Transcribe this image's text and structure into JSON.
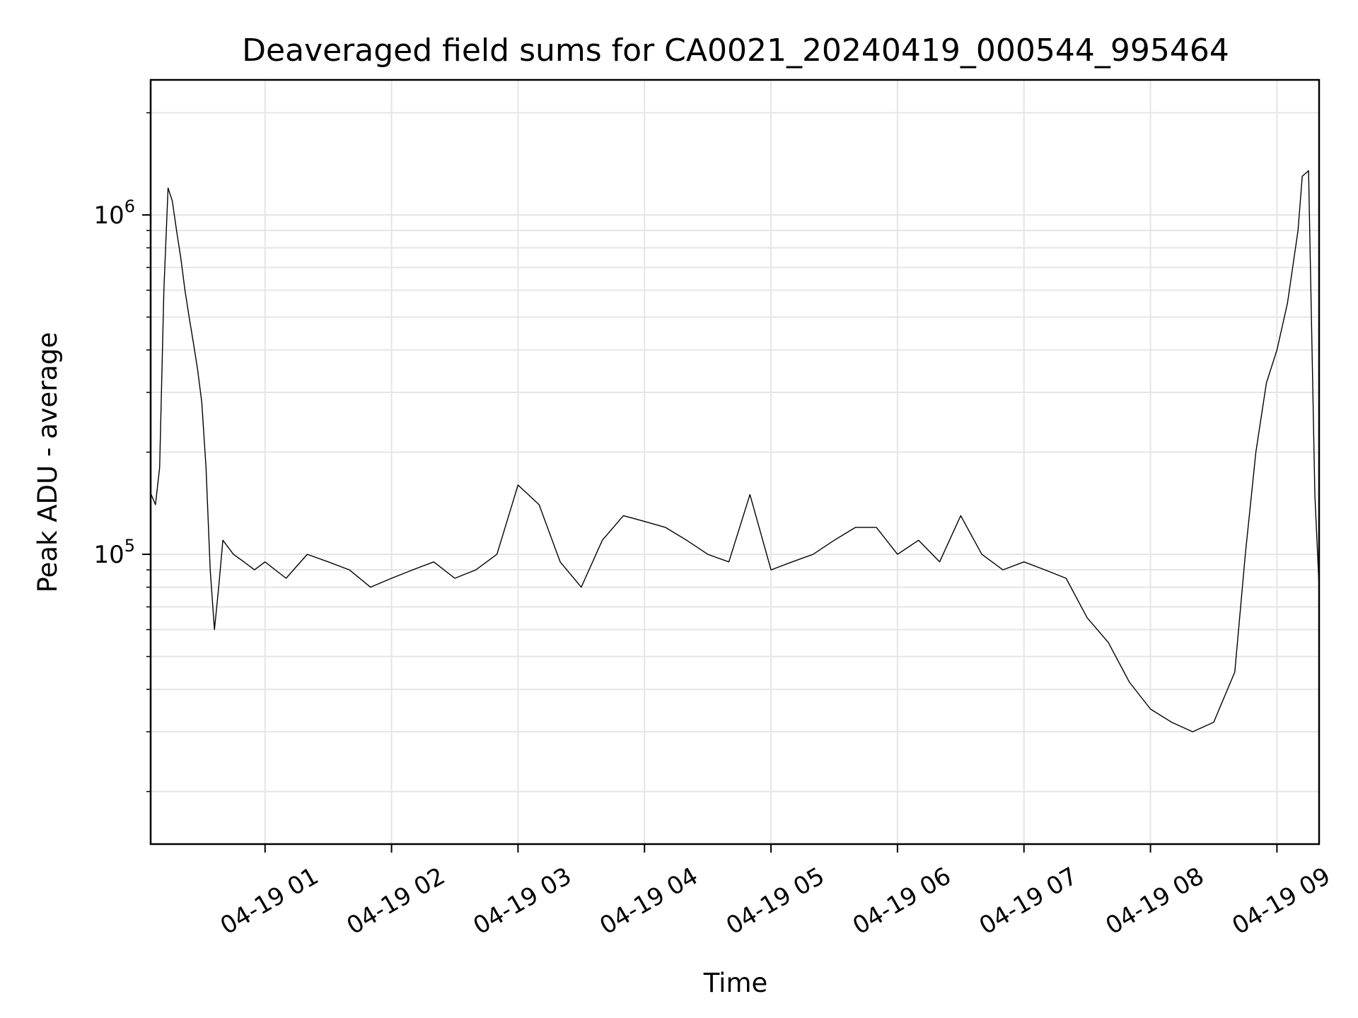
{
  "chart_data": {
    "type": "line",
    "title": "Deaveraged field sums for CA0021_20240419_000544_995464",
    "xlabel": "Time",
    "ylabel": "Peak ADU - average",
    "yscale": "log",
    "grid": true,
    "line_color": "#000000",
    "grid_color": "#e5e5e5",
    "xlim": [
      "04-19 00:05:44",
      "04-19 09:20:00"
    ],
    "ylim": [
      14000,
      2500000
    ],
    "xticks": [
      {
        "label": "04-19 01",
        "time": "04-19 01:00"
      },
      {
        "label": "04-19 02",
        "time": "04-19 02:00"
      },
      {
        "label": "04-19 03",
        "time": "04-19 03:00"
      },
      {
        "label": "04-19 04",
        "time": "04-19 04:00"
      },
      {
        "label": "04-19 05",
        "time": "04-19 05:00"
      },
      {
        "label": "04-19 06",
        "time": "04-19 06:00"
      },
      {
        "label": "04-19 07",
        "time": "04-19 07:00"
      },
      {
        "label": "04-19 08",
        "time": "04-19 08:00"
      },
      {
        "label": "04-19 09",
        "time": "04-19 09:00"
      }
    ],
    "yticks": [
      {
        "base": "10",
        "exp": "5",
        "value": 100000
      },
      {
        "base": "10",
        "exp": "6",
        "value": 1000000
      }
    ],
    "series": [
      {
        "values_note": "",
        "x": [
          "04-19 00:06",
          "04-19 00:08",
          "04-19 00:10",
          "04-19 00:12",
          "04-19 00:14",
          "04-19 00:16",
          "04-19 00:18",
          "04-19 00:20",
          "04-19 00:22",
          "04-19 00:24",
          "04-19 00:26",
          "04-19 00:28",
          "04-19 00:30",
          "04-19 00:32",
          "04-19 00:34",
          "04-19 00:36",
          "04-19 00:38",
          "04-19 00:40",
          "04-19 00:45",
          "04-19 00:50",
          "04-19 00:55",
          "04-19 01:00",
          "04-19 01:10",
          "04-19 01:20",
          "04-19 01:30",
          "04-19 01:40",
          "04-19 01:50",
          "04-19 02:00",
          "04-19 02:10",
          "04-19 02:20",
          "04-19 02:30",
          "04-19 02:40",
          "04-19 02:50",
          "04-19 03:00",
          "04-19 03:10",
          "04-19 03:20",
          "04-19 03:30",
          "04-19 03:40",
          "04-19 03:50",
          "04-19 04:00",
          "04-19 04:10",
          "04-19 04:20",
          "04-19 04:30",
          "04-19 04:40",
          "04-19 04:50",
          "04-19 05:00",
          "04-19 05:10",
          "04-19 05:20",
          "04-19 05:30",
          "04-19 05:40",
          "04-19 05:50",
          "04-19 06:00",
          "04-19 06:10",
          "04-19 06:20",
          "04-19 06:30",
          "04-19 06:40",
          "04-19 06:50",
          "04-19 07:00",
          "04-19 07:10",
          "04-19 07:20",
          "04-19 07:30",
          "04-19 07:40",
          "04-19 07:50",
          "04-19 08:00",
          "04-19 08:10",
          "04-19 08:20",
          "04-19 08:30",
          "04-19 08:40",
          "04-19 08:45",
          "04-19 08:50",
          "04-19 08:55",
          "04-19 09:00",
          "04-19 09:05",
          "04-19 09:10",
          "04-19 09:12",
          "04-19 09:15",
          "04-19 09:18",
          "04-19 09:20"
        ],
        "values": [
          150000,
          140000,
          180000,
          600000,
          1200000,
          1100000,
          900000,
          750000,
          600000,
          500000,
          420000,
          350000,
          280000,
          180000,
          90000,
          60000,
          80000,
          110000,
          100000,
          95000,
          90000,
          95000,
          85000,
          100000,
          95000,
          90000,
          80000,
          85000,
          90000,
          95000,
          85000,
          90000,
          100000,
          160000,
          140000,
          95000,
          80000,
          110000,
          130000,
          125000,
          120000,
          110000,
          100000,
          95000,
          150000,
          90000,
          95000,
          100000,
          110000,
          120000,
          120000,
          100000,
          110000,
          95000,
          130000,
          100000,
          90000,
          95000,
          90000,
          85000,
          65000,
          55000,
          42000,
          35000,
          32000,
          30000,
          32000,
          45000,
          100000,
          200000,
          320000,
          400000,
          550000,
          900000,
          1300000,
          1350000,
          150000,
          80000
        ]
      }
    ]
  }
}
